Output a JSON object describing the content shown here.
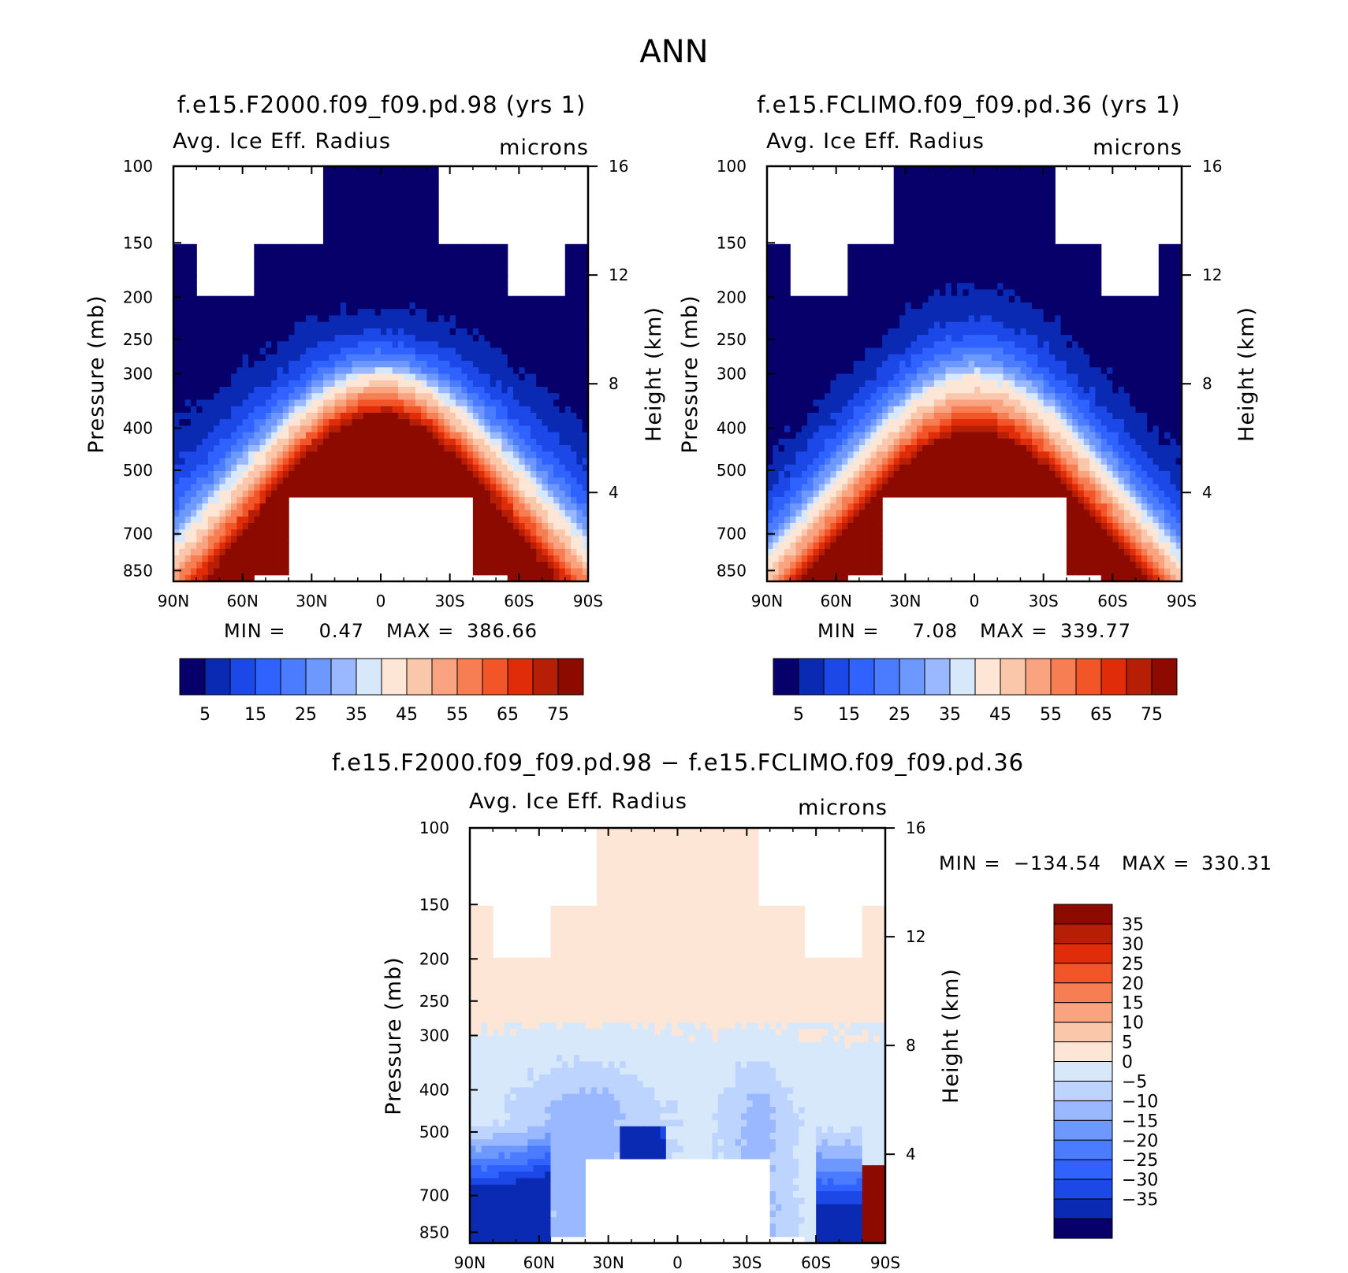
{
  "figure": {
    "title": "ANN",
    "ramp12": [
      "#08006a",
      "#0a2ab4",
      "#1b48e6",
      "#2f62ff",
      "#4b7cff",
      "#6d99ff",
      "#99b8ff",
      "#bdd4ff",
      "#d8e8fb",
      "#fde6d5",
      "#fbc7ab",
      "#f9a381",
      "#f77e53",
      "#f25528",
      "#e02c09",
      "#b61f05",
      "#8c0a00"
    ]
  },
  "chart_data": [
    {
      "type": "contour",
      "id": "left",
      "title": "f.e15.F2000.f09_f09.pd.98 (yrs 1)",
      "variable": "Avg. Ice Eff. Radius",
      "units": "microns",
      "ylabel": "Pressure (mb)",
      "ylabel_right": "Height (km)",
      "x_ticks": [
        "90N",
        "60N",
        "30N",
        "0",
        "30S",
        "60S",
        "90S"
      ],
      "y_ticks": [
        "100",
        "150",
        "200",
        "250",
        "300",
        "400",
        "500",
        "700",
        "850"
      ],
      "y_ticks_right": [
        "16",
        "12",
        "8",
        "4"
      ],
      "min_label": "MIN =",
      "min": "0.47",
      "max_label": "MAX =",
      "max": "386.66",
      "colorbar_labels": [
        "5",
        "15",
        "25",
        "35",
        "45",
        "55",
        "65",
        "75"
      ],
      "colorbar_colors": [
        "#08006a",
        "#0a2ab4",
        "#1b48e6",
        "#2f62ff",
        "#4b7cff",
        "#6d99ff",
        "#99b8ff",
        "#d8e8fb",
        "#fde6d5",
        "#fbc7ab",
        "#f9a381",
        "#f77e53",
        "#f25528",
        "#e02c09",
        "#b61f05",
        "#8c0a00"
      ],
      "levels": [
        5,
        10,
        15,
        20,
        25,
        30,
        35,
        40,
        45,
        50,
        55,
        60,
        65,
        70,
        75
      ],
      "field": {
        "kind": "abs",
        "low_p_base": 300,
        "low_p_lat": 0.5,
        "low_p_cap": 1000,
        "high_p_base": 380,
        "high_p_lat": 0.85,
        "shape_exp": 1.2,
        "ampl": 1.0,
        "mask_top_lat": 26,
        "mask_top_p": 150,
        "mask_upper_lat": 55,
        "mask_upper_p": 200,
        "ground_lat": 40,
        "ground_p": 570
      }
    },
    {
      "type": "contour",
      "id": "right",
      "title": "f.e15.FCLIMO.f09_f09.pd.36 (yrs 1)",
      "variable": "Avg. Ice Eff. Radius",
      "units": "microns",
      "ylabel": "Pressure (mb)",
      "ylabel_right": "Height (km)",
      "x_ticks": [
        "90N",
        "60N",
        "30N",
        "0",
        "30S",
        "60S",
        "90S"
      ],
      "y_ticks": [
        "100",
        "150",
        "200",
        "250",
        "300",
        "400",
        "500",
        "700",
        "850"
      ],
      "y_ticks_right": [
        "16",
        "12",
        "8",
        "4"
      ],
      "min_label": "MIN =",
      "min": "7.08",
      "max_label": "MAX =",
      "max": "339.77",
      "colorbar_labels": [
        "5",
        "15",
        "25",
        "35",
        "45",
        "55",
        "65",
        "75"
      ],
      "colorbar_colors": [
        "#08006a",
        "#0a2ab4",
        "#1b48e6",
        "#2f62ff",
        "#4b7cff",
        "#6d99ff",
        "#99b8ff",
        "#d8e8fb",
        "#fde6d5",
        "#fbc7ab",
        "#f9a381",
        "#f77e53",
        "#f25528",
        "#e02c09",
        "#b61f05",
        "#8c0a00"
      ],
      "levels": [
        5,
        10,
        15,
        20,
        25,
        30,
        35,
        40,
        45,
        50,
        55,
        60,
        65,
        70,
        75
      ],
      "field": {
        "kind": "abs",
        "low_p_base": 305,
        "low_p_lat": 0.55,
        "low_p_cap": 1000,
        "high_p_base": 420,
        "high_p_lat": 0.8,
        "shape_exp": 1.3,
        "ampl": 1.0,
        "mask_top_lat": 36,
        "mask_top_p": 150,
        "mask_upper_lat": 55,
        "mask_upper_p": 200,
        "ground_lat": 40,
        "ground_p": 570
      }
    },
    {
      "type": "contour",
      "id": "diff",
      "title": "f.e15.F2000.f09_f09.pd.98 − f.e15.FCLIMO.f09_f09.pd.36",
      "variable": "Avg. Ice Eff. Radius",
      "units": "microns",
      "ylabel": "Pressure (mb)",
      "ylabel_right": "Height (km)",
      "x_ticks": [
        "90N",
        "60N",
        "30N",
        "0",
        "30S",
        "60S",
        "90S"
      ],
      "y_ticks": [
        "100",
        "150",
        "200",
        "250",
        "300",
        "400",
        "500",
        "700",
        "850"
      ],
      "y_ticks_right": [
        "16",
        "12",
        "8",
        "4"
      ],
      "min_label": "MIN =",
      "min": "−134.54",
      "max_label": "MAX =",
      "max": "330.31",
      "colorbar_labels": [
        "35",
        "30",
        "25",
        "20",
        "15",
        "10",
        "5",
        "0",
        "−5",
        "−10",
        "−15",
        "−20",
        "−25",
        "−30",
        "−35"
      ],
      "colorbar_colors": [
        "#8c0a00",
        "#b61f05",
        "#e02c09",
        "#f25528",
        "#f77e53",
        "#f9a381",
        "#fbc7ab",
        "#fde6d5",
        "#d8e8fb",
        "#bdd4ff",
        "#99b8ff",
        "#6d99ff",
        "#4b7cff",
        "#2f62ff",
        "#1b48e6",
        "#0a2ab4",
        "#08006a"
      ],
      "levels": [
        -35,
        -30,
        -25,
        -20,
        -15,
        -10,
        -5,
        0,
        5,
        10,
        15,
        20,
        25,
        30,
        35
      ],
      "field": {
        "kind": "diff",
        "mask_top_lat": 36,
        "mask_top_p": 150,
        "mask_upper_lat": 55,
        "mask_upper_p": 200,
        "ground_lat": 40,
        "ground_p": 570
      }
    }
  ]
}
